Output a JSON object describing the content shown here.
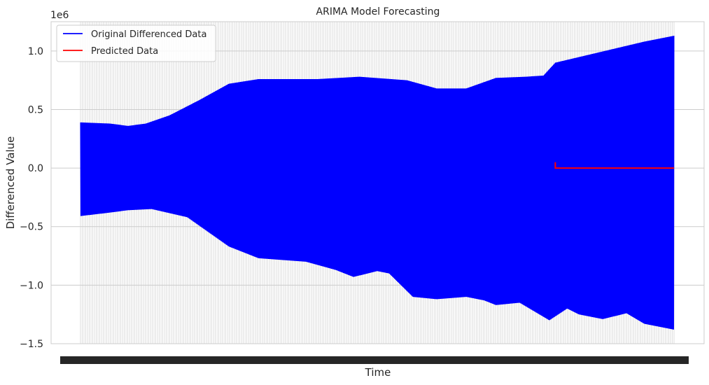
{
  "chart_data": {
    "type": "line",
    "title": "ARIMA Model Forecasting",
    "xlabel": "Time",
    "ylabel": "Differenced Value",
    "y_offset_label": "1e6",
    "ylim": [
      -1.5,
      1.25
    ],
    "yticks": [
      -1.5,
      -1.0,
      -0.5,
      0.0,
      0.5,
      1.0
    ],
    "ytick_labels": [
      "−1.5",
      "−1.0",
      "−0.5",
      "0.0",
      "0.5",
      "1.0"
    ],
    "x_tick_count": 340,
    "grid": true,
    "legend_position": "upper-left",
    "series": [
      {
        "name": "Original Differenced Data",
        "color": "#0000ff",
        "style": "alternating",
        "upper_envelope": [
          [
            0.0,
            0.39
          ],
          [
            0.05,
            0.38
          ],
          [
            0.08,
            0.36
          ],
          [
            0.11,
            0.38
          ],
          [
            0.15,
            0.45
          ],
          [
            0.2,
            0.58
          ],
          [
            0.25,
            0.72
          ],
          [
            0.3,
            0.76
          ],
          [
            0.4,
            0.76
          ],
          [
            0.47,
            0.78
          ],
          [
            0.55,
            0.75
          ],
          [
            0.6,
            0.68
          ],
          [
            0.65,
            0.68
          ],
          [
            0.7,
            0.77
          ],
          [
            0.75,
            0.78
          ],
          [
            0.78,
            0.79
          ],
          [
            0.8,
            0.9
          ],
          [
            0.85,
            0.96
          ],
          [
            0.9,
            1.02
          ],
          [
            0.95,
            1.08
          ],
          [
            1.0,
            1.13
          ]
        ],
        "lower_envelope": [
          [
            0.0,
            -0.41
          ],
          [
            0.05,
            -0.38
          ],
          [
            0.08,
            -0.36
          ],
          [
            0.12,
            -0.35
          ],
          [
            0.18,
            -0.42
          ],
          [
            0.25,
            -0.67
          ],
          [
            0.3,
            -0.77
          ],
          [
            0.38,
            -0.8
          ],
          [
            0.43,
            -0.87
          ],
          [
            0.46,
            -0.93
          ],
          [
            0.5,
            -0.88
          ],
          [
            0.52,
            -0.9
          ],
          [
            0.54,
            -1.0
          ],
          [
            0.56,
            -1.1
          ],
          [
            0.6,
            -1.12
          ],
          [
            0.65,
            -1.1
          ],
          [
            0.68,
            -1.13
          ],
          [
            0.7,
            -1.17
          ],
          [
            0.74,
            -1.15
          ],
          [
            0.77,
            -1.24
          ],
          [
            0.79,
            -1.3
          ],
          [
            0.82,
            -1.2
          ],
          [
            0.84,
            -1.25
          ],
          [
            0.88,
            -1.29
          ],
          [
            0.92,
            -1.24
          ],
          [
            0.95,
            -1.33
          ],
          [
            1.0,
            -1.38
          ]
        ]
      },
      {
        "name": "Predicted Data",
        "color": "#ff0000",
        "x_start": 0.8,
        "x_end": 1.0,
        "start_spike": 0.05,
        "value": 0.0
      }
    ]
  }
}
